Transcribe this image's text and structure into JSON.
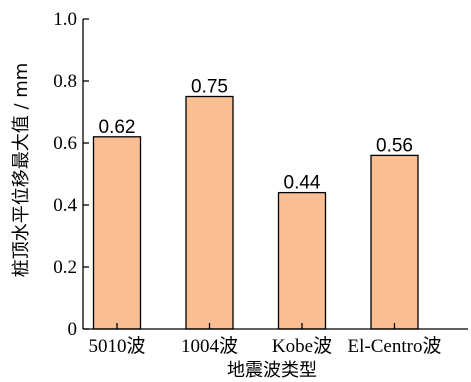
{
  "chart_data": {
    "type": "bar",
    "title": "",
    "xlabel": "地震波类型",
    "ylabel": "桩顶水平位移最大值 / mm",
    "categories": [
      "5010波",
      "1004波",
      "Kobe波",
      "El-Centro波"
    ],
    "values": [
      0.62,
      0.75,
      0.44,
      0.56
    ],
    "value_labels": [
      "0.62",
      "0.75",
      "0.44",
      "0.56"
    ],
    "ylim": [
      0,
      1.0
    ],
    "yticks": [
      0,
      0.2,
      0.4,
      0.6,
      0.8,
      1.0
    ],
    "ytick_labels": [
      "0",
      "0.2",
      "0.4",
      "0.6",
      "0.8",
      "1.0"
    ],
    "grid": false,
    "legend": "none",
    "bar_color": "#F9BE92",
    "bar_edge_color": "#000000"
  }
}
